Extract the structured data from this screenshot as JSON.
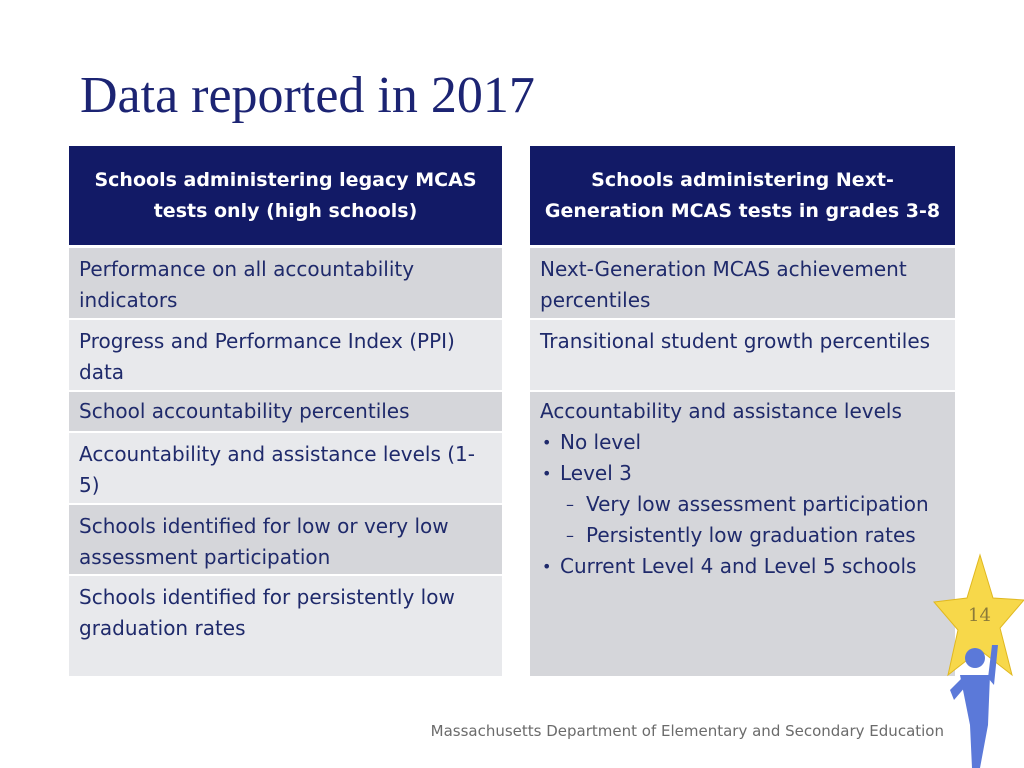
{
  "title": "Data reported in 2017",
  "left": {
    "header": "Schools administering legacy MCAS tests only (high schools)",
    "rows": [
      "Performance on all accountability indicators",
      "Progress and Performance Index (PPI) data",
      "School accountability percentiles",
      "Accountability and assistance levels (1-5)",
      "Schools identified for low or very low assessment participation",
      "Schools identified for persistently low graduation rates"
    ]
  },
  "right": {
    "header": "Schools administering Next-Generation MCAS tests in grades 3-8",
    "rows": [
      "Next-Generation MCAS achievement percentiles",
      "Transitional student growth percentiles"
    ],
    "levels": {
      "heading": "Accountability and assistance levels",
      "items": [
        {
          "text": "No level"
        },
        {
          "text": "Level 3",
          "sub": [
            "Very low assessment participation",
            "Persistently low graduation rates"
          ]
        },
        {
          "text": "Current Level 4 and Level 5 schools"
        }
      ]
    }
  },
  "footer": "Massachusetts Department of Elementary and Secondary Education",
  "page_number": "14"
}
